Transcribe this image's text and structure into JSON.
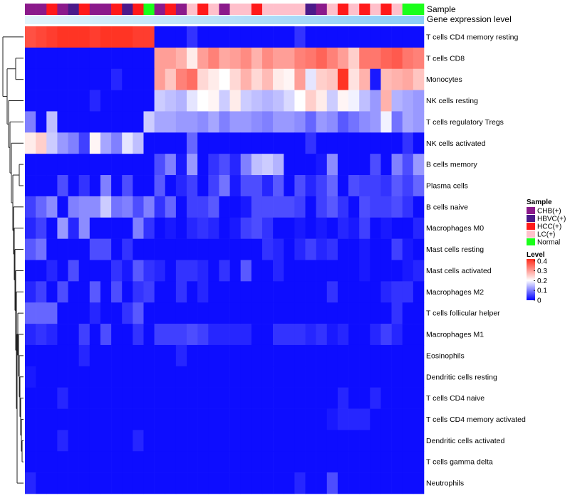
{
  "chart_data": {
    "type": "heatmap",
    "annotation_tracks": [
      "Sample",
      "Gene expression level"
    ],
    "columns": 37,
    "sample_groups": [
      "CHB(+)",
      "CHB(+)",
      "HCC(+)",
      "CHB(+)",
      "HBVC(+)",
      "HCC(+)",
      "CHB(+)",
      "CHB(+)",
      "HCC(+)",
      "HBVC(+)",
      "HCC(+)",
      "Normal",
      "CHB(+)",
      "HCC(+)",
      "CHB(+)",
      "LC(+)",
      "HCC(+)",
      "LC(+)",
      "CHB(+)",
      "LC(+)",
      "LC(+)",
      "HCC(+)",
      "LC(+)",
      "LC(+)",
      "LC(+)",
      "LC(+)",
      "HBVC(+)",
      "CHB(+)",
      "LC(+)",
      "HCC(+)",
      "LC(+)",
      "HCC(+)",
      "LC(+)",
      "HCC(+)",
      "LC(+)",
      "Normal",
      "Normal"
    ],
    "rows": [
      {
        "label": "T cells CD4 memory resting",
        "values": [
          0.38,
          0.39,
          0.4,
          0.41,
          0.41,
          0.41,
          0.4,
          0.41,
          0.41,
          0.41,
          0.4,
          0.4,
          0.01,
          0.01,
          0.01,
          0.04,
          0.01,
          0.01,
          0.01,
          0.01,
          0.01,
          0.01,
          0.01,
          0.01,
          0.01,
          0.04,
          0.01,
          0.01,
          0.01,
          0.01,
          0.01,
          0.01,
          0.01,
          0.01,
          0.01,
          0.01,
          0.01
        ]
      },
      {
        "label": "T cells CD8",
        "values": [
          0.01,
          0.01,
          0.01,
          0.01,
          0.01,
          0.01,
          0.01,
          0.01,
          0.01,
          0.01,
          0.01,
          0.01,
          0.3,
          0.3,
          0.28,
          0.22,
          0.3,
          0.33,
          0.29,
          0.3,
          0.32,
          0.28,
          0.32,
          0.3,
          0.3,
          0.33,
          0.34,
          0.36,
          0.33,
          0.3,
          0.25,
          0.34,
          0.34,
          0.36,
          0.37,
          0.34,
          0.33
        ]
      },
      {
        "label": "Monocytes",
        "values": [
          0.01,
          0.01,
          0.01,
          0.01,
          0.01,
          0.01,
          0.01,
          0.01,
          0.03,
          0.01,
          0.01,
          0.01,
          0.3,
          0.26,
          0.33,
          0.35,
          0.24,
          0.22,
          0.2,
          0.24,
          0.28,
          0.24,
          0.27,
          0.22,
          0.21,
          0.3,
          0.18,
          0.25,
          0.26,
          0.41,
          0.23,
          0.28,
          0.02,
          0.27,
          0.28,
          0.29,
          0.26
        ]
      },
      {
        "label": "NK cells resting",
        "values": [
          0.01,
          0.01,
          0.01,
          0.01,
          0.01,
          0.01,
          0.03,
          0.01,
          0.01,
          0.01,
          0.01,
          0.01,
          0.16,
          0.15,
          0.14,
          0.18,
          0.2,
          0.21,
          0.16,
          0.22,
          0.16,
          0.15,
          0.14,
          0.15,
          0.17,
          0.2,
          0.25,
          0.22,
          0.16,
          0.21,
          0.19,
          0.15,
          0.12,
          0.28,
          0.14,
          0.13,
          0.12
        ]
      },
      {
        "label": "T cells regulatory  Tregs",
        "values": [
          0.1,
          0.01,
          0.15,
          0.01,
          0.01,
          0.01,
          0.01,
          0.01,
          0.01,
          0.01,
          0.01,
          0.16,
          0.13,
          0.13,
          0.12,
          0.12,
          0.11,
          0.13,
          0.1,
          0.12,
          0.12,
          0.11,
          0.1,
          0.12,
          0.12,
          0.11,
          0.08,
          0.12,
          0.11,
          0.07,
          0.09,
          0.11,
          0.12,
          0.19,
          0.09,
          0.13,
          0.12
        ]
      },
      {
        "label": "NK cells activated",
        "values": [
          0.22,
          0.25,
          0.16,
          0.12,
          0.1,
          0.05,
          0.21,
          0.13,
          0.1,
          0.18,
          0.15,
          0.01,
          0.01,
          0.01,
          0.01,
          0.08,
          0.01,
          0.01,
          0.01,
          0.01,
          0.01,
          0.01,
          0.01,
          0.01,
          0.01,
          0.01,
          0.04,
          0.01,
          0.01,
          0.01,
          0.01,
          0.01,
          0.01,
          0.01,
          0.01,
          0.04,
          0.01
        ]
      },
      {
        "label": "B cells memory",
        "values": [
          0.01,
          0.01,
          0.01,
          0.01,
          0.01,
          0.01,
          0.01,
          0.01,
          0.01,
          0.01,
          0.01,
          0.01,
          0.06,
          0.1,
          0.02,
          0.12,
          0.01,
          0.04,
          0.06,
          0.03,
          0.1,
          0.15,
          0.16,
          0.14,
          0.01,
          0.01,
          0.01,
          0.02,
          0.11,
          0.01,
          0.01,
          0.01,
          0.06,
          0.01,
          0.1,
          0.06,
          0.12
        ]
      },
      {
        "label": "Plasma cells",
        "values": [
          0.01,
          0.01,
          0.01,
          0.06,
          0.01,
          0.04,
          0.01,
          0.1,
          0.01,
          0.06,
          0.01,
          0.01,
          0.07,
          0.01,
          0.03,
          0.05,
          0.01,
          0.05,
          0.09,
          0.02,
          0.06,
          0.06,
          0.03,
          0.07,
          0.01,
          0.06,
          0.03,
          0.05,
          0.08,
          0.01,
          0.06,
          0.05,
          0.05,
          0.04,
          0.07,
          0.05,
          0.08
        ]
      },
      {
        "label": "B cells naive",
        "values": [
          0.05,
          0.08,
          0.11,
          0.01,
          0.1,
          0.11,
          0.11,
          0.16,
          0.09,
          0.1,
          0.06,
          0.1,
          0.04,
          0.08,
          0.01,
          0.05,
          0.05,
          0.07,
          0.01,
          0.01,
          0.02,
          0.06,
          0.06,
          0.06,
          0.06,
          0.05,
          0.01,
          0.05,
          0.07,
          0.04,
          0.01,
          0.06,
          0.05,
          0.05,
          0.06,
          0.04,
          0.01
        ]
      },
      {
        "label": "Macrophages M0",
        "values": [
          0.03,
          0.05,
          0.01,
          0.12,
          0.03,
          0.11,
          0.01,
          0.01,
          0.01,
          0.01,
          0.1,
          0.04,
          0.01,
          0.02,
          0.01,
          0.03,
          0.04,
          0.03,
          0.01,
          0.02,
          0.05,
          0.06,
          0.04,
          0.01,
          0.01,
          0.02,
          0.01,
          0.02,
          0.01,
          0.03,
          0.02,
          0.05,
          0.01,
          0.02,
          0.01,
          0.01,
          0.03
        ]
      },
      {
        "label": "Mast cells resting",
        "values": [
          0.07,
          0.09,
          0.01,
          0.01,
          0.01,
          0.01,
          0.06,
          0.06,
          0.01,
          0.04,
          0.01,
          0.01,
          0.01,
          0.01,
          0.01,
          0.01,
          0.01,
          0.01,
          0.01,
          0.01,
          0.01,
          0.01,
          0.04,
          0.03,
          0.01,
          0.03,
          0.05,
          0.03,
          0.04,
          0.01,
          0.01,
          0.02,
          0.01,
          0.01,
          0.05,
          0.02,
          0.01
        ]
      },
      {
        "label": "Mast cells activated",
        "values": [
          0.01,
          0.01,
          0.03,
          0.01,
          0.06,
          0.01,
          0.01,
          0.01,
          0.04,
          0.02,
          0.07,
          0.04,
          0.03,
          0.01,
          0.04,
          0.04,
          0.03,
          0.01,
          0.04,
          0.01,
          0.07,
          0.01,
          0.01,
          0.03,
          0.01,
          0.01,
          0.01,
          0.01,
          0.01,
          0.01,
          0.01,
          0.02,
          0.01,
          0.01,
          0.01,
          0.02,
          0.03
        ]
      },
      {
        "label": "Macrophages M2",
        "values": [
          0.03,
          0.05,
          0.01,
          0.06,
          0.01,
          0.01,
          0.07,
          0.01,
          0.06,
          0.01,
          0.04,
          0.05,
          0.01,
          0.01,
          0.04,
          0.01,
          0.03,
          0.01,
          0.01,
          0.01,
          0.01,
          0.01,
          0.01,
          0.01,
          0.01,
          0.01,
          0.01,
          0.01,
          0.04,
          0.01,
          0.01,
          0.01,
          0.01,
          0.03,
          0.04,
          0.04,
          0.01
        ]
      },
      {
        "label": "T cells follicular helper",
        "values": [
          0.08,
          0.08,
          0.08,
          0.01,
          0.01,
          0.01,
          0.03,
          0.01,
          0.01,
          0.04,
          0.07,
          0.01,
          0.01,
          0.01,
          0.01,
          0.01,
          0.01,
          0.01,
          0.01,
          0.01,
          0.01,
          0.01,
          0.01,
          0.01,
          0.01,
          0.01,
          0.01,
          0.01,
          0.01,
          0.01,
          0.01,
          0.01,
          0.01,
          0.01,
          0.04,
          0.01,
          0.01
        ]
      },
      {
        "label": "Macrophages M1",
        "values": [
          0.03,
          0.04,
          0.03,
          0.01,
          0.01,
          0.05,
          0.01,
          0.06,
          0.01,
          0.01,
          0.04,
          0.01,
          0.05,
          0.05,
          0.05,
          0.06,
          0.05,
          0.03,
          0.03,
          0.03,
          0.03,
          0.01,
          0.01,
          0.04,
          0.04,
          0.04,
          0.03,
          0.04,
          0.02,
          0.03,
          0.01,
          0.01,
          0.03,
          0.05,
          0.03,
          0.01,
          0.01
        ]
      },
      {
        "label": "Eosinophils",
        "values": [
          0.01,
          0.01,
          0.01,
          0.01,
          0.01,
          0.03,
          0.01,
          0.01,
          0.01,
          0.01,
          0.01,
          0.01,
          0.01,
          0.01,
          0.03,
          0.01,
          0.01,
          0.01,
          0.01,
          0.01,
          0.01,
          0.01,
          0.01,
          0.01,
          0.01,
          0.01,
          0.01,
          0.01,
          0.01,
          0.01,
          0.01,
          0.01,
          0.01,
          0.01,
          0.01,
          0.01,
          0.01
        ]
      },
      {
        "label": "Dendritic cells resting",
        "values": [
          0.02,
          0.01,
          0.01,
          0.01,
          0.01,
          0.01,
          0.01,
          0.01,
          0.01,
          0.01,
          0.01,
          0.01,
          0.01,
          0.01,
          0.01,
          0.01,
          0.01,
          0.01,
          0.01,
          0.01,
          0.01,
          0.01,
          0.01,
          0.01,
          0.01,
          0.01,
          0.01,
          0.01,
          0.01,
          0.01,
          0.01,
          0.01,
          0.01,
          0.01,
          0.01,
          0.01,
          0.01
        ]
      },
      {
        "label": "T cells CD4 naive",
        "values": [
          0.01,
          0.01,
          0.01,
          0.03,
          0.01,
          0.01,
          0.01,
          0.01,
          0.01,
          0.01,
          0.01,
          0.01,
          0.01,
          0.01,
          0.01,
          0.01,
          0.01,
          0.01,
          0.01,
          0.01,
          0.01,
          0.01,
          0.01,
          0.01,
          0.01,
          0.01,
          0.01,
          0.01,
          0.01,
          0.03,
          0.01,
          0.01,
          0.03,
          0.01,
          0.01,
          0.01,
          0.01
        ]
      },
      {
        "label": "T cells CD4 memory activated",
        "values": [
          0.01,
          0.01,
          0.01,
          0.01,
          0.01,
          0.01,
          0.01,
          0.01,
          0.01,
          0.01,
          0.01,
          0.01,
          0.01,
          0.01,
          0.01,
          0.01,
          0.01,
          0.01,
          0.01,
          0.01,
          0.01,
          0.01,
          0.01,
          0.01,
          0.01,
          0.01,
          0.01,
          0.01,
          0.02,
          0.03,
          0.03,
          0.03,
          0.01,
          0.01,
          0.01,
          0.01,
          0.01
        ]
      },
      {
        "label": "Dendritic cells activated",
        "values": [
          0.01,
          0.01,
          0.01,
          0.03,
          0.01,
          0.01,
          0.01,
          0.01,
          0.01,
          0.01,
          0.03,
          0.01,
          0.01,
          0.01,
          0.01,
          0.01,
          0.01,
          0.01,
          0.01,
          0.01,
          0.01,
          0.01,
          0.01,
          0.01,
          0.01,
          0.01,
          0.01,
          0.01,
          0.01,
          0.01,
          0.01,
          0.01,
          0.01,
          0.01,
          0.01,
          0.01,
          0.01
        ]
      },
      {
        "label": "T cells gamma delta",
        "values": [
          0.01,
          0.01,
          0.01,
          0.01,
          0.01,
          0.01,
          0.01,
          0.01,
          0.01,
          0.01,
          0.01,
          0.01,
          0.01,
          0.01,
          0.01,
          0.01,
          0.01,
          0.01,
          0.01,
          0.01,
          0.01,
          0.01,
          0.01,
          0.01,
          0.01,
          0.01,
          0.01,
          0.01,
          0.01,
          0.01,
          0.01,
          0.01,
          0.01,
          0.01,
          0.01,
          0.01,
          0.01
        ]
      },
      {
        "label": "Neutrophils",
        "values": [
          0.03,
          0.01,
          0.01,
          0.01,
          0.01,
          0.01,
          0.01,
          0.01,
          0.01,
          0.01,
          0.01,
          0.01,
          0.01,
          0.01,
          0.01,
          0.01,
          0.01,
          0.01,
          0.01,
          0.01,
          0.01,
          0.01,
          0.01,
          0.01,
          0.01,
          0.03,
          0.01,
          0.01,
          0.06,
          0.01,
          0.01,
          0.01,
          0.01,
          0.01,
          0.01,
          0.01,
          0.01
        ]
      }
    ],
    "legend": {
      "sample_title": "Sample",
      "sample_entries": [
        {
          "label": "CHB(+)",
          "color": "#8b1a8b"
        },
        {
          "label": "HBVC(+)",
          "color": "#4b1a8a"
        },
        {
          "label": "HCC(+)",
          "color": "#ff1a1a"
        },
        {
          "label": "LC(+)",
          "color": "#ffc0cb"
        },
        {
          "label": "Normal",
          "color": "#1aff1a"
        }
      ],
      "level_title": "Level",
      "level_ticks": [
        "0.4",
        "0.3",
        "0.2",
        "0.1",
        "0"
      ],
      "level_range": [
        0,
        0.42
      ]
    },
    "gene_expression_gradient": [
      "#e2f4fb",
      "#8ccdf7"
    ],
    "color_scale": {
      "low": "#0000ff",
      "mid": "#ffffff",
      "high": "#ff2a1a",
      "mid_value": 0.2
    }
  }
}
